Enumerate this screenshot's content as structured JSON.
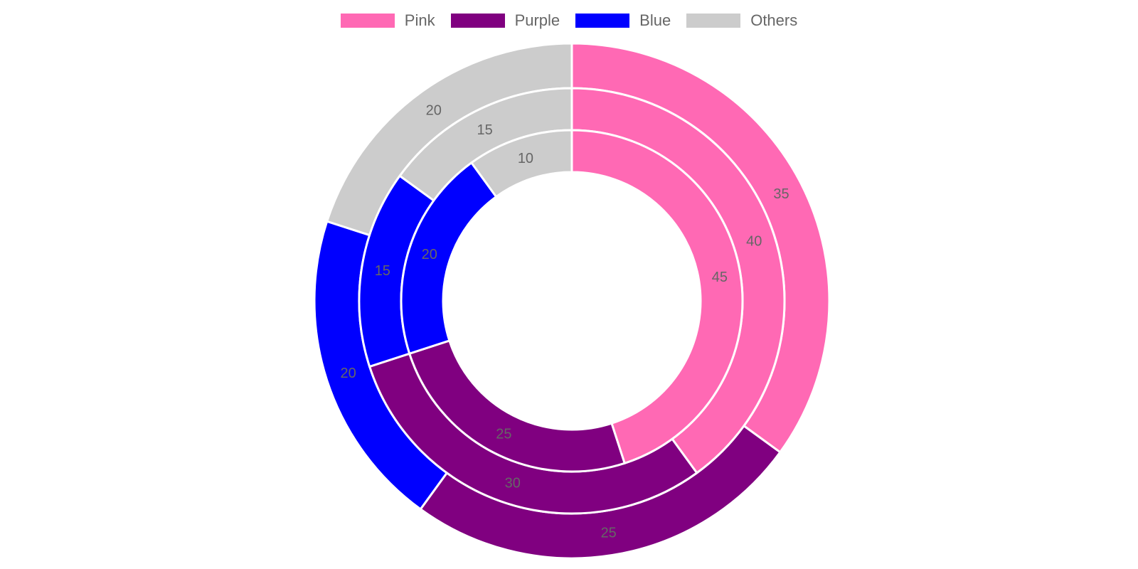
{
  "chart_data": {
    "type": "doughnut",
    "categories": [
      "Pink",
      "Purple",
      "Blue",
      "Others"
    ],
    "colors": {
      "Pink": "#ff69b4",
      "Purple": "#800080",
      "Blue": "#0000ff",
      "Others": "#cccccc"
    },
    "rings": [
      {
        "values": [
          35,
          25,
          20,
          20
        ]
      },
      {
        "values": [
          40,
          30,
          15,
          15
        ]
      },
      {
        "values": [
          45,
          25,
          20,
          10
        ]
      }
    ],
    "legend_position": "top",
    "label_color": "#666666",
    "border_color": "#ffffff"
  }
}
